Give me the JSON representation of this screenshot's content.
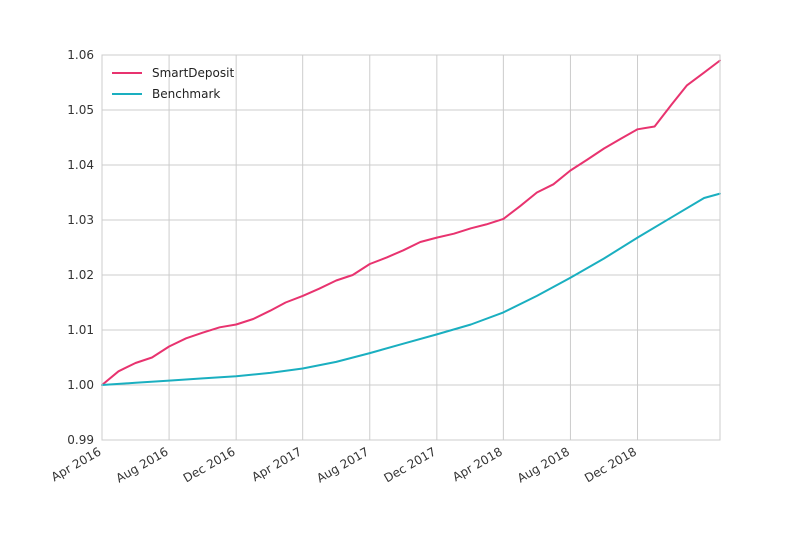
{
  "chart_data": {
    "type": "line",
    "title": "",
    "xlabel": "",
    "ylabel": "",
    "xlim": [
      "2016-04-01",
      "2019-04-30"
    ],
    "ylim": [
      0.99,
      1.06
    ],
    "yticks": [
      0.99,
      1.0,
      1.01,
      1.02,
      1.03,
      1.04,
      1.05,
      1.06
    ],
    "ytick_labels": [
      "0.99",
      "1.00",
      "1.01",
      "1.02",
      "1.03",
      "1.04",
      "1.05",
      "1.06"
    ],
    "xticks": [
      "2016-04-01",
      "2016-08-01",
      "2016-12-01",
      "2017-04-01",
      "2017-08-01",
      "2017-12-01",
      "2018-04-01",
      "2018-08-01",
      "2018-12-01"
    ],
    "xtick_labels": [
      "Apr 2016",
      "Aug 2016",
      "Dec 2016",
      "Apr 2017",
      "Aug 2017",
      "Dec 2017",
      "Apr 2018",
      "Aug 2018",
      "Dec 2018"
    ],
    "grid": true,
    "legend_position": "top-left",
    "series": [
      {
        "name": "SmartDeposit",
        "color": "#e8336f",
        "x": [
          "2016-04-01",
          "2016-05-01",
          "2016-06-01",
          "2016-07-01",
          "2016-08-01",
          "2016-09-01",
          "2016-10-01",
          "2016-11-01",
          "2016-12-01",
          "2017-01-01",
          "2017-02-01",
          "2017-03-01",
          "2017-04-01",
          "2017-05-01",
          "2017-06-01",
          "2017-07-01",
          "2017-08-01",
          "2017-09-01",
          "2017-10-01",
          "2017-11-01",
          "2017-12-01",
          "2018-01-01",
          "2018-02-01",
          "2018-03-01",
          "2018-04-01",
          "2018-05-01",
          "2018-06-01",
          "2018-07-01",
          "2018-08-01",
          "2018-09-01",
          "2018-10-01",
          "2018-11-01",
          "2018-12-01",
          "2019-01-01",
          "2019-02-01",
          "2019-03-01",
          "2019-04-01",
          "2019-04-30"
        ],
        "values": [
          1.0,
          1.0025,
          1.004,
          1.005,
          1.007,
          1.0085,
          1.0095,
          1.0105,
          1.011,
          1.012,
          1.0135,
          1.015,
          1.0162,
          1.0175,
          1.019,
          1.02,
          1.022,
          1.0232,
          1.0245,
          1.026,
          1.0268,
          1.0275,
          1.0285,
          1.0292,
          1.0302,
          1.0325,
          1.035,
          1.0365,
          1.039,
          1.041,
          1.043,
          1.0448,
          1.0465,
          1.047,
          1.051,
          1.0545,
          1.0568,
          1.059
        ]
      },
      {
        "name": "Benchmark",
        "color": "#1aafc0",
        "x": [
          "2016-04-01",
          "2016-06-01",
          "2016-08-01",
          "2016-10-01",
          "2016-12-01",
          "2017-02-01",
          "2017-04-01",
          "2017-06-01",
          "2017-08-01",
          "2017-10-01",
          "2017-12-01",
          "2018-02-01",
          "2018-04-01",
          "2018-06-01",
          "2018-08-01",
          "2018-10-01",
          "2018-12-01",
          "2019-02-01",
          "2019-04-01",
          "2019-04-30"
        ],
        "values": [
          1.0,
          1.0004,
          1.0008,
          1.0012,
          1.0016,
          1.0022,
          1.003,
          1.0042,
          1.0058,
          1.0075,
          1.0092,
          1.011,
          1.0132,
          1.0162,
          1.0195,
          1.023,
          1.0268,
          1.0305,
          1.034,
          1.0348
        ]
      }
    ]
  }
}
